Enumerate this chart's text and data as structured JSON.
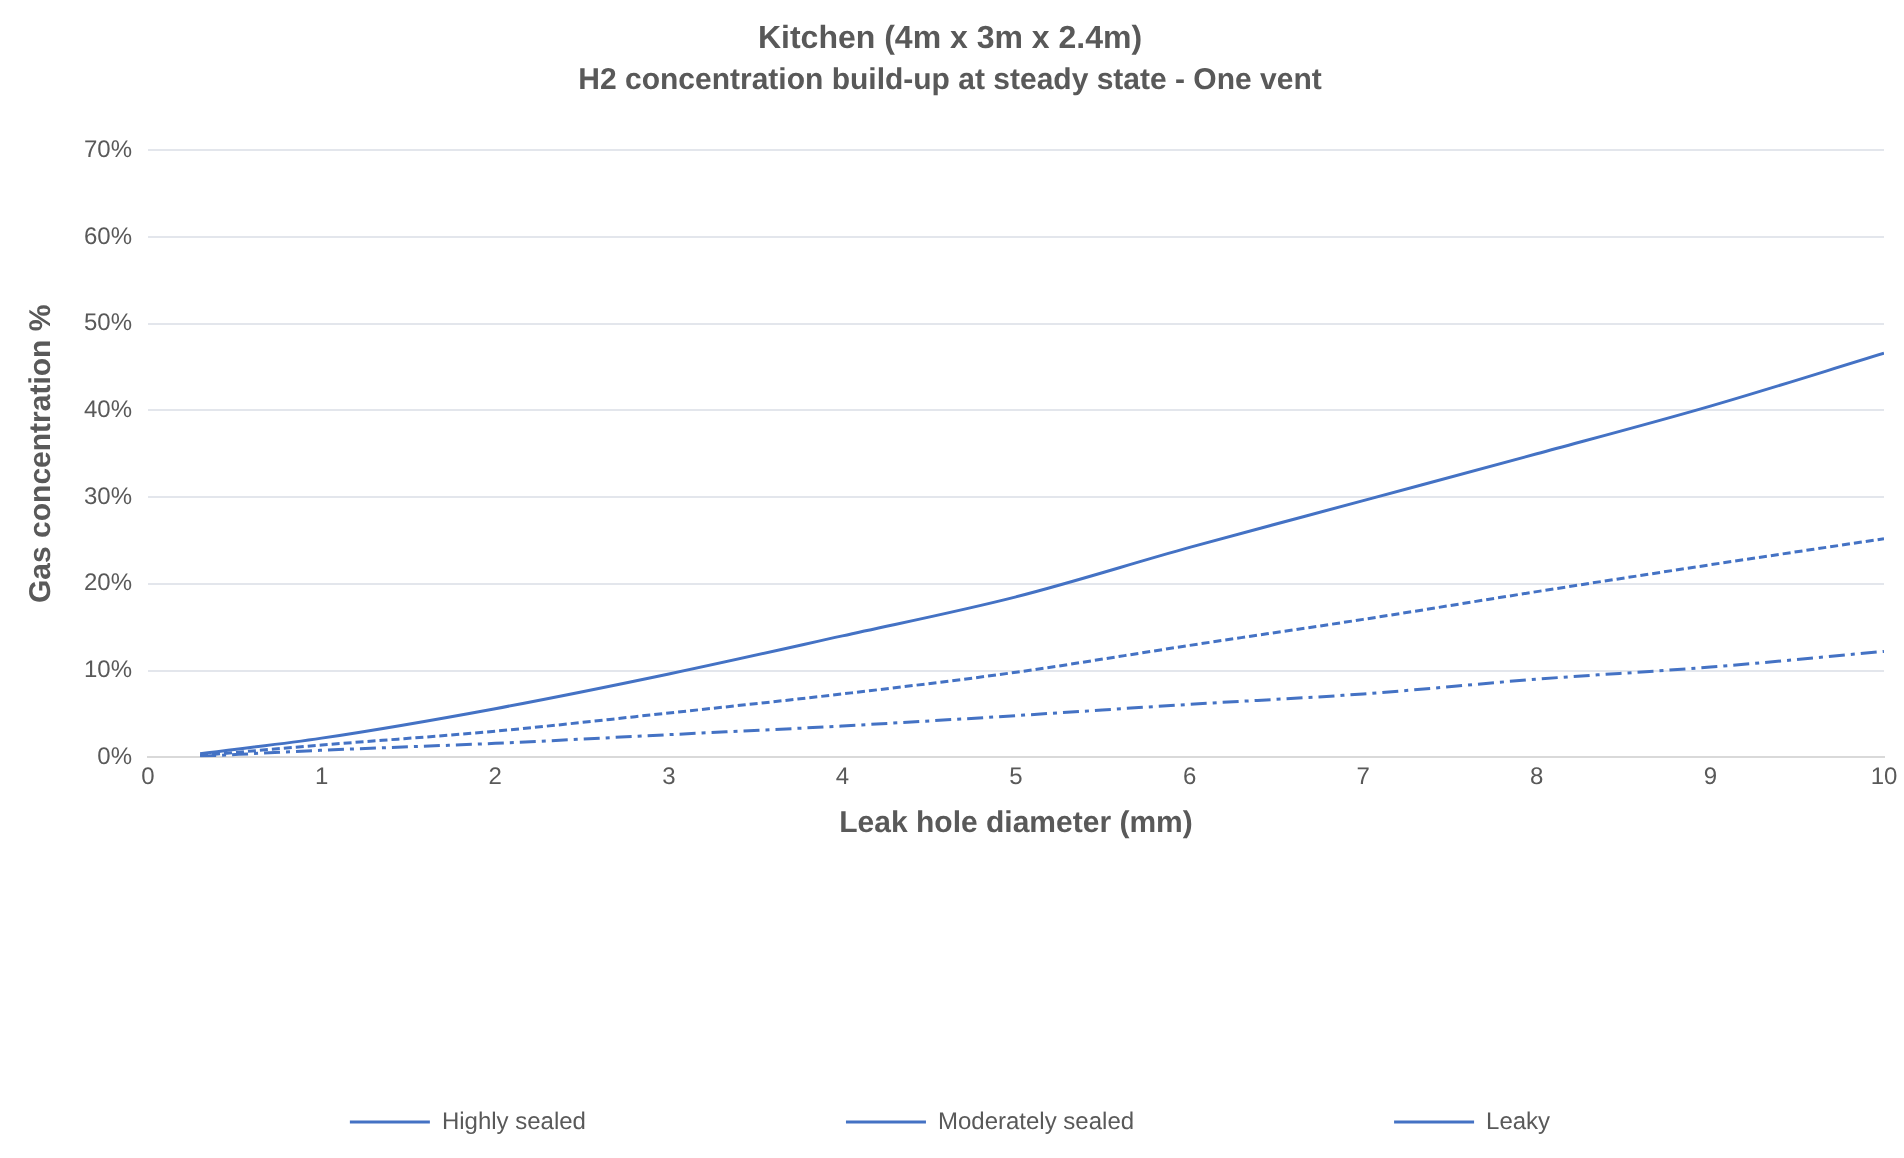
{
  "chart_data": {
    "type": "line",
    "title": "Kitchen (4m x 3m x 2.4m)",
    "subtitle": "H2 concentration build-up at steady state - One vent",
    "xlabel": "Leak hole diameter (mm)",
    "ylabel": "Gas concentration %",
    "x": [
      0.3,
      1,
      2,
      3,
      4,
      5,
      6,
      7,
      8,
      9,
      10
    ],
    "series": [
      {
        "name": "Highly sealed",
        "color": "#4472c4",
        "line_style": "solid",
        "values": [
          0.4,
          2.2,
          5.6,
          9.6,
          14.0,
          18.5,
          24.2,
          29.6,
          35.0,
          40.5,
          46.6
        ]
      },
      {
        "name": "Moderately sealed",
        "color": "#4472c4",
        "line_style": "dashed",
        "values": [
          0.2,
          1.4,
          3.0,
          5.1,
          7.3,
          9.8,
          12.9,
          15.9,
          19.1,
          22.2,
          25.2
        ]
      },
      {
        "name": "Leaky",
        "color": "#4472c4",
        "line_style": "dashdot",
        "values": [
          0.1,
          0.8,
          1.6,
          2.6,
          3.6,
          4.8,
          6.1,
          7.3,
          9.0,
          10.4,
          12.2
        ]
      }
    ],
    "xlim": [
      0,
      10
    ],
    "xticks": [
      0,
      1,
      2,
      3,
      4,
      5,
      6,
      7,
      8,
      9,
      10
    ],
    "ylim": [
      0,
      70
    ],
    "yticks": [
      {
        "value": 0,
        "label": "0%"
      },
      {
        "value": 10,
        "label": "10%"
      },
      {
        "value": 20,
        "label": "20%"
      },
      {
        "value": 30,
        "label": "30%"
      },
      {
        "value": 40,
        "label": "40%"
      },
      {
        "value": 50,
        "label": "50%"
      },
      {
        "value": 60,
        "label": "60%"
      },
      {
        "value": 70,
        "label": "70%"
      }
    ],
    "grid": "y",
    "legend": "bottom",
    "marker": "none"
  }
}
